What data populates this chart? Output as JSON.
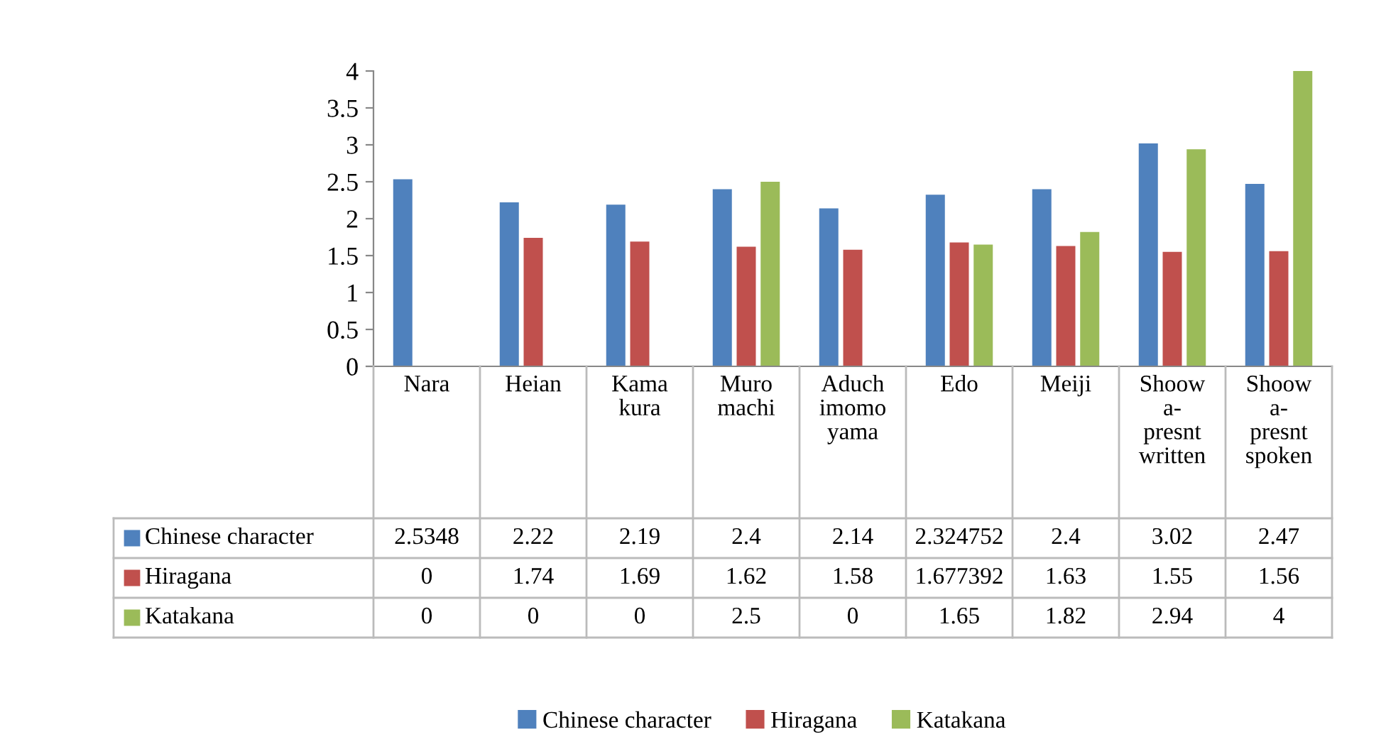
{
  "chart_data": {
    "type": "bar",
    "categories": [
      "Nara",
      "Heian",
      "Kama\nkura",
      "Muro\nmachi",
      "Aduch\nimomo\nyama",
      "Edo",
      "Meiji",
      "Shoow\na-\npresnt\nwritten",
      "Shoow\na-\npresnt\nspoken"
    ],
    "series": [
      {
        "name": "Chinese character",
        "color": "#4f81bd",
        "values": [
          2.5348,
          2.22,
          2.19,
          2.4,
          2.14,
          2.324752,
          2.4,
          3.02,
          2.47
        ]
      },
      {
        "name": "Hiragana",
        "color": "#c0504d",
        "values": [
          0,
          1.74,
          1.69,
          1.62,
          1.58,
          1.677392,
          1.63,
          1.55,
          1.56
        ]
      },
      {
        "name": "Katakana",
        "color": "#9bbb59",
        "values": [
          0,
          0,
          0,
          2.5,
          0,
          1.65,
          1.82,
          2.94,
          4
        ]
      }
    ],
    "ylim": [
      0,
      4
    ],
    "yticks": [
      0,
      0.5,
      1,
      1.5,
      2,
      2.5,
      3,
      3.5,
      4
    ],
    "grid": false,
    "legend": "bottom",
    "data_labels": true
  }
}
